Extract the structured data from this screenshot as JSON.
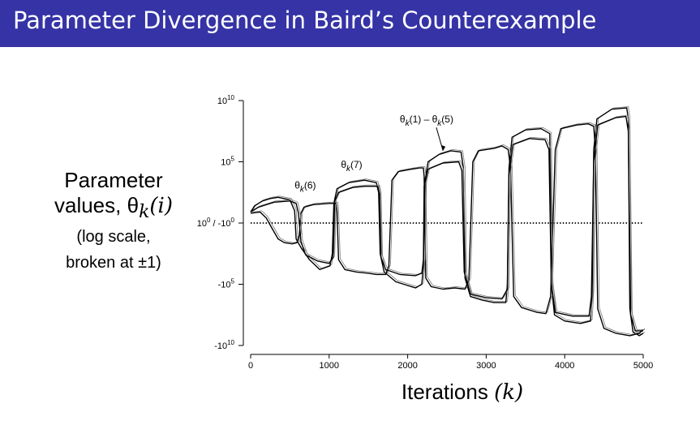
{
  "slide": {
    "title": "Parameter Divergence in Baird’s Counterexample",
    "accent_color": "#3533a5"
  },
  "chart_data": {
    "type": "line",
    "ylabel_lines": [
      "Parameter",
      "values, θk(i)",
      "(log scale,",
      "broken at ±1)"
    ],
    "ylabel_parts": {
      "line2_prefix": "values, ",
      "theta": "θ",
      "sub": "k",
      "suffix": "(i)"
    },
    "xlabel_parts": {
      "prefix": "Iterations ",
      "var": "(k)"
    },
    "y_scale": "symmetric log, broken at ±1",
    "x_range": [
      0,
      5000
    ],
    "y_range": [
      -11,
      10
    ],
    "x_ticks": [
      "0",
      "1000",
      "2000",
      "3000",
      "4000",
      "5000"
    ],
    "y_ticks": [
      {
        "value": 10,
        "label": "10",
        "exp": "10"
      },
      {
        "value": 5,
        "label": "10",
        "exp": "5"
      },
      {
        "value": 0,
        "label": "10",
        "exp": "0",
        "extra": " / -10",
        "extra_exp": "0"
      },
      {
        "value": -5,
        "label": "-10",
        "exp": "5"
      },
      {
        "value": -10,
        "label": "-10",
        "exp": "10"
      }
    ],
    "zero_line": "dotted",
    "annotations": [
      {
        "id": "theta6",
        "text": "θk(6)",
        "x": 560,
        "y": 2.8
      },
      {
        "id": "theta7",
        "text": "θk(7)",
        "x": 1150,
        "y": 4.5
      },
      {
        "id": "theta15",
        "text": "θk(1) – θk(5)",
        "x": 1900,
        "y": 8.2,
        "arrow_to": {
          "x": 2450,
          "y": 5.9
        }
      }
    ],
    "series": [
      {
        "id": "theta1to5",
        "points": [
          [
            0,
            0.9
          ],
          [
            50,
            1.4
          ],
          [
            150,
            1.8
          ],
          [
            250,
            2.0
          ],
          [
            350,
            2.1
          ],
          [
            500,
            1.9
          ],
          [
            560,
            1.0
          ],
          [
            580,
            -1.3
          ],
          [
            640,
            -2.0
          ],
          [
            750,
            -3.0
          ],
          [
            880,
            -3.8
          ],
          [
            1010,
            -3.5
          ],
          [
            1040,
            -2.5
          ],
          [
            1060,
            1.6
          ],
          [
            1100,
            2.8
          ],
          [
            1250,
            3.3
          ],
          [
            1450,
            3.5
          ],
          [
            1600,
            3.3
          ],
          [
            1630,
            2.5
          ],
          [
            1650,
            -2.5
          ],
          [
            1700,
            -4.0
          ],
          [
            1850,
            -4.8
          ],
          [
            1950,
            -5.0
          ],
          [
            2100,
            -5.3
          ],
          [
            2180,
            -5.0
          ],
          [
            2200,
            -3.5
          ],
          [
            2220,
            3.5
          ],
          [
            2260,
            5.0
          ],
          [
            2400,
            5.6
          ],
          [
            2550,
            5.9
          ],
          [
            2680,
            5.8
          ],
          [
            2710,
            4.5
          ],
          [
            2730,
            -4.5
          ],
          [
            2800,
            -6.0
          ],
          [
            2950,
            -6.3
          ],
          [
            3100,
            -6.5
          ],
          [
            3250,
            -6.5
          ],
          [
            3270,
            -5.0
          ],
          [
            3290,
            4.5
          ],
          [
            3330,
            7.0
          ],
          [
            3500,
            7.6
          ],
          [
            3700,
            7.7
          ],
          [
            3810,
            7.3
          ],
          [
            3830,
            -5.0
          ],
          [
            3870,
            -7.5
          ],
          [
            4000,
            -8.0
          ],
          [
            4200,
            -8.2
          ],
          [
            4330,
            -8.0
          ],
          [
            4350,
            -5.5
          ],
          [
            4370,
            6.0
          ],
          [
            4410,
            8.5
          ],
          [
            4600,
            9.3
          ],
          [
            4790,
            9.4
          ],
          [
            4810,
            8.5
          ],
          [
            4830,
            -7.0
          ],
          [
            4870,
            -8.9
          ],
          [
            4950,
            -9.2
          ],
          [
            5000,
            -9.0
          ]
        ]
      },
      {
        "id": "theta6",
        "points": [
          [
            0,
            0.8
          ],
          [
            120,
            0.9
          ],
          [
            200,
            0.4
          ],
          [
            260,
            -0.3
          ],
          [
            350,
            -1.3
          ],
          [
            430,
            -1.6
          ],
          [
            530,
            -1.7
          ],
          [
            590,
            -1.6
          ],
          [
            620,
            -1.0
          ],
          [
            640,
            0.8
          ],
          [
            680,
            1.3
          ],
          [
            800,
            1.5
          ],
          [
            1000,
            1.6
          ],
          [
            1090,
            1.6
          ],
          [
            1100,
            1.0
          ],
          [
            1120,
            -3.0
          ],
          [
            1200,
            -3.8
          ],
          [
            1350,
            -4.0
          ],
          [
            1500,
            -4.1
          ],
          [
            1600,
            -4.2
          ],
          [
            1720,
            -4.2
          ],
          [
            1760,
            -3.5
          ],
          [
            1800,
            3.5
          ],
          [
            1880,
            4.2
          ],
          [
            2050,
            4.4
          ],
          [
            2150,
            4.5
          ],
          [
            2200,
            4.5
          ],
          [
            2210,
            3.8
          ],
          [
            2230,
            -4.5
          ],
          [
            2300,
            -5.2
          ],
          [
            2450,
            -5.4
          ],
          [
            2600,
            -5.3
          ],
          [
            2730,
            -5.4
          ],
          [
            2780,
            -4.6
          ],
          [
            2830,
            5.0
          ],
          [
            2900,
            5.9
          ],
          [
            3100,
            6.1
          ],
          [
            3200,
            6.3
          ],
          [
            3280,
            6.0
          ],
          [
            3310,
            4.5
          ],
          [
            3350,
            -6.0
          ],
          [
            3450,
            -6.9
          ],
          [
            3650,
            -7.3
          ],
          [
            3760,
            -7.4
          ],
          [
            3820,
            -6.0
          ],
          [
            3880,
            6.0
          ],
          [
            3950,
            7.7
          ],
          [
            4150,
            8.0
          ],
          [
            4300,
            8.1
          ],
          [
            4370,
            7.9
          ],
          [
            4390,
            6.0
          ],
          [
            4420,
            -7.0
          ],
          [
            4500,
            -8.6
          ],
          [
            4650,
            -9.0
          ],
          [
            4830,
            -9.2
          ],
          [
            4950,
            -9.0
          ],
          [
            5000,
            -8.7
          ]
        ]
      },
      {
        "id": "theta7",
        "points": [
          [
            0,
            0.9
          ],
          [
            100,
            1.3
          ],
          [
            300,
            1.7
          ],
          [
            500,
            1.8
          ],
          [
            580,
            1.6
          ],
          [
            610,
            0.8
          ],
          [
            640,
            -1.5
          ],
          [
            700,
            -2.6
          ],
          [
            850,
            -3.1
          ],
          [
            1000,
            -3.3
          ],
          [
            1050,
            -2.8
          ],
          [
            1070,
            1.8
          ],
          [
            1120,
            2.5
          ],
          [
            1300,
            2.9
          ],
          [
            1460,
            3.0
          ],
          [
            1620,
            3.0
          ],
          [
            1640,
            2.4
          ],
          [
            1660,
            -2.8
          ],
          [
            1720,
            -3.8
          ],
          [
            1900,
            -4.2
          ],
          [
            2100,
            -4.3
          ],
          [
            2180,
            -4.1
          ],
          [
            2200,
            -3.0
          ],
          [
            2210,
            3.0
          ],
          [
            2260,
            4.4
          ],
          [
            2450,
            4.9
          ],
          [
            2650,
            5.0
          ],
          [
            2690,
            4.3
          ],
          [
            2720,
            -4.0
          ],
          [
            2800,
            -5.8
          ],
          [
            3000,
            -6.1
          ],
          [
            3200,
            -6.2
          ],
          [
            3270,
            -5.4
          ],
          [
            3290,
            4.0
          ],
          [
            3340,
            6.4
          ],
          [
            3550,
            6.9
          ],
          [
            3750,
            6.8
          ],
          [
            3800,
            6.0
          ],
          [
            3830,
            -5.0
          ],
          [
            3880,
            -7.3
          ],
          [
            4100,
            -7.6
          ],
          [
            4310,
            -7.6
          ],
          [
            4340,
            -6.0
          ],
          [
            4370,
            5.0
          ],
          [
            4420,
            8.0
          ],
          [
            4650,
            8.6
          ],
          [
            4780,
            8.7
          ],
          [
            4810,
            7.5
          ],
          [
            4840,
            -7.5
          ],
          [
            4900,
            -8.8
          ],
          [
            5000,
            -8.8
          ]
        ]
      }
    ]
  }
}
